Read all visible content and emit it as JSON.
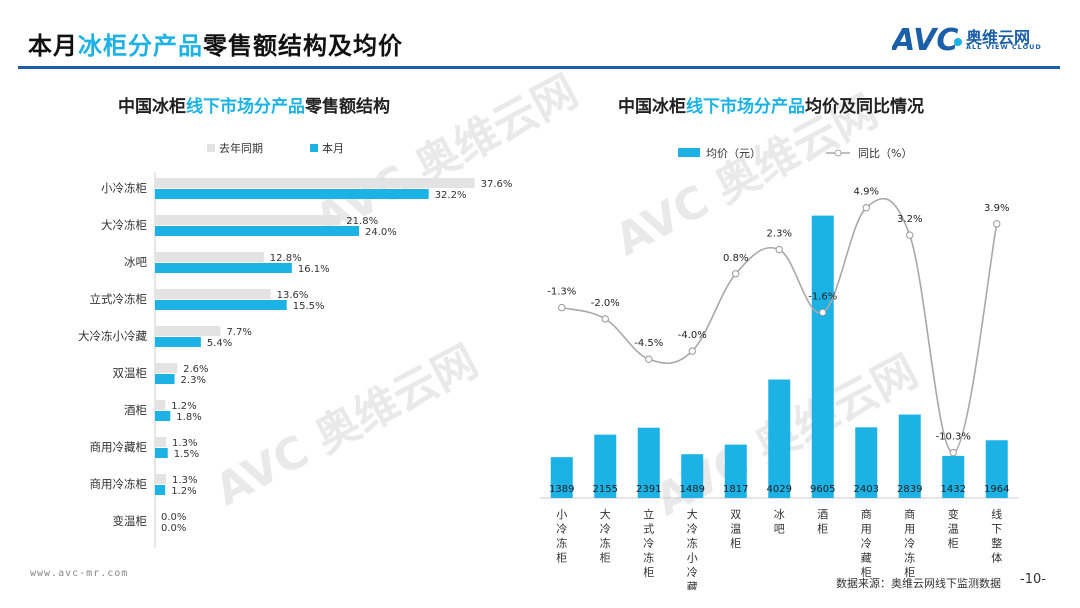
{
  "header": {
    "title_pre": "本月",
    "title_hl": "冰柜分产品",
    "title_post": "零售额结构及均价",
    "logo_cn": "奥维云网",
    "logo_en": "ALL VIEW CLOUD",
    "accent_color": "#1cb2e6",
    "rule_color": "#1a5fa8"
  },
  "left_chart_title": {
    "pre": "中国冰柜",
    "hl": "线下市场分产品",
    "post": "零售额结构"
  },
  "right_chart_title": {
    "pre": "中国冰柜",
    "hl": "线下市场分产品",
    "post": "均价及同比情况"
  },
  "watermark": "AVC 奥维云网",
  "footer": {
    "url": "www.avc-mr.com",
    "source": "数据来源：奥维云网线下监测数据",
    "page": "-10-"
  },
  "chart_data": [
    {
      "type": "bar",
      "orientation": "horizontal",
      "categories": [
        "小冷冻柜",
        "大冷冻柜",
        "冰吧",
        "立式冷冻柜",
        "大冷冻小冷藏",
        "双温柜",
        "酒柜",
        "商用冷藏柜",
        "商用冷冻柜",
        "变温柜"
      ],
      "series": [
        {
          "name": "去年同期",
          "color": "#e3e3e3",
          "values": [
            37.6,
            21.8,
            12.8,
            13.6,
            7.7,
            2.6,
            1.2,
            1.3,
            1.3,
            0.0
          ]
        },
        {
          "name": "本月",
          "color": "#1cb2e6",
          "values": [
            32.2,
            24.0,
            16.1,
            15.5,
            5.4,
            2.3,
            1.8,
            1.5,
            1.2,
            0.0
          ]
        }
      ],
      "label_suffix": "%",
      "legend_position": "top",
      "xlim": [
        0,
        40
      ]
    },
    {
      "type": "bar+line",
      "categories": [
        "小冷冻柜",
        "大冷冻柜",
        "立式冷冻柜",
        "大冷冻小冷藏",
        "双温柜",
        "冰吧",
        "酒柜",
        "商用冷藏柜",
        "商用冷冻柜",
        "变温柜",
        "线下整体"
      ],
      "series": [
        {
          "name": "均价（元）",
          "type": "bar",
          "color": "#1cb2e6",
          "values": [
            1389,
            2155,
            2391,
            1489,
            1817,
            4029,
            9605,
            2403,
            2839,
            1432,
            1964
          ]
        },
        {
          "name": "同比（%）",
          "type": "line",
          "color": "#a8a8a8",
          "values": [
            -1.3,
            -2.0,
            -4.5,
            -4.0,
            0.8,
            2.3,
            -1.6,
            4.9,
            3.2,
            -10.3,
            3.9
          ]
        }
      ],
      "bar_ylim": [
        0,
        10000
      ],
      "line_ylim": [
        -12,
        6
      ],
      "legend_position": "top"
    }
  ]
}
